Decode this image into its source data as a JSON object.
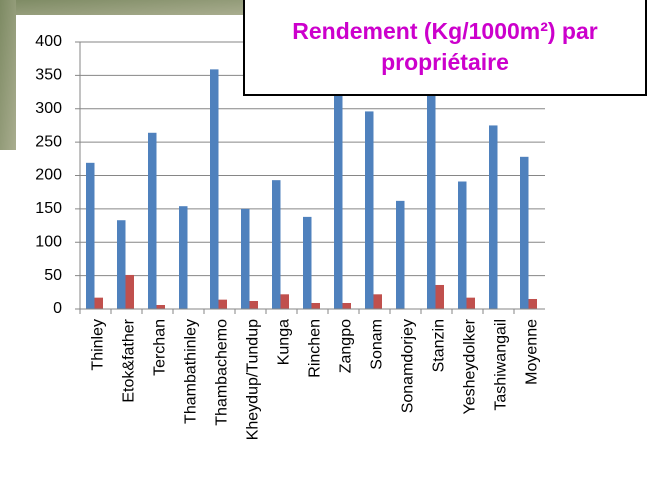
{
  "chart_data": {
    "type": "bar",
    "title": "Rendement (Kg/1000m²) par propriétaire",
    "categories": [
      "Thinley",
      "Etok&father",
      "Terchan",
      "Thambathinley",
      "Thambachemo",
      "Kheydup/Tundup",
      "Kunga",
      "Rinchen",
      "Zangpo",
      "Sonam",
      "Sonamdorjey",
      "Stanzin",
      "Yesheydolker",
      "Tashiwangail",
      "Moyenne"
    ],
    "series": [
      {
        "color": "#4f81bd",
        "values": [
          219,
          133,
          264,
          154,
          359,
          150,
          193,
          138,
          320,
          296,
          162,
          320,
          191,
          275,
          228
        ]
      },
      {
        "color": "#c0504d",
        "values": [
          17,
          51,
          6,
          null,
          14,
          12,
          22,
          9,
          9,
          22,
          null,
          36,
          17,
          null,
          15
        ]
      }
    ],
    "ylim": [
      0,
      400
    ],
    "yticks": [
      0,
      50,
      100,
      150,
      200,
      250,
      300,
      350,
      400
    ],
    "grid": true
  }
}
